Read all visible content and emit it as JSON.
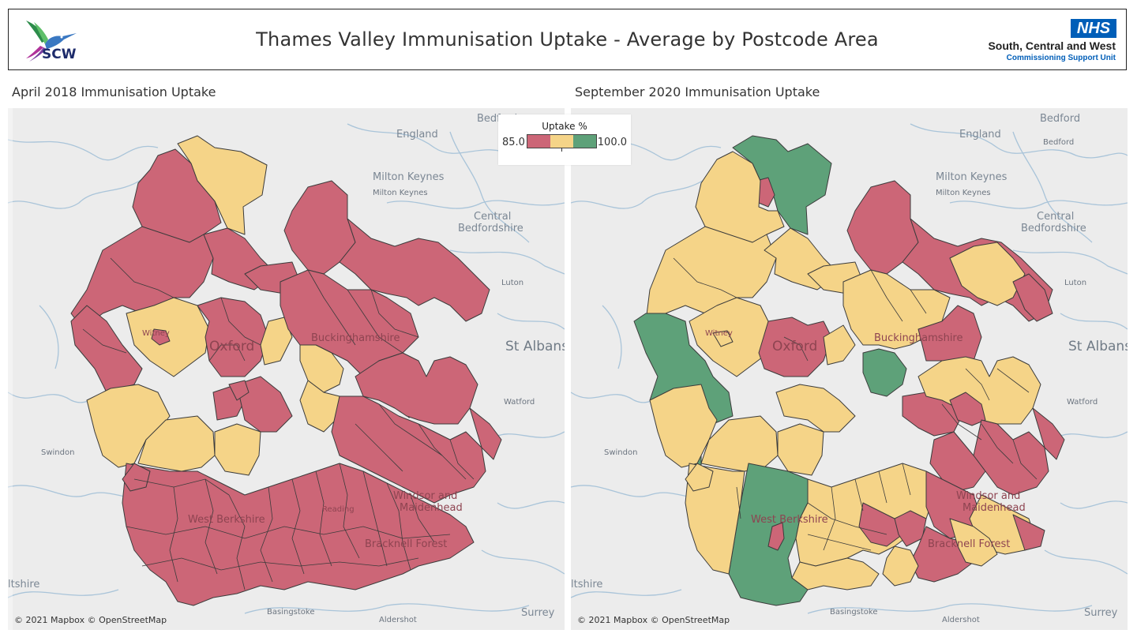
{
  "header": {
    "title": "Thames Valley Immunisation Uptake - Average by Postcode Area",
    "logo_left_text": "SCW",
    "nhs_badge": "NHS",
    "org_name": "South, Central and West",
    "org_sub": "Commissioning Support Unit"
  },
  "panels": [
    {
      "title": "April 2018 Immunisation Uptake",
      "attribution": "© 2021 Mapbox © OpenStreetMap",
      "dominant_category": "low"
    },
    {
      "title": "September 2020 Immunisation Uptake",
      "attribution": "© 2021 Mapbox © OpenStreetMap",
      "dominant_category": "mixed"
    }
  ],
  "legend": {
    "title": "Uptake %",
    "min_label": "85.0",
    "max_label": "100.0",
    "colors": {
      "low": "#cc6677",
      "mid": "#f5d488",
      "high": "#5ea179"
    }
  },
  "places": {
    "bedford": "Bedford",
    "england": "England",
    "milton_keynes": "Milton Keynes",
    "central_bedfordshire": "Central\nBedfordshire",
    "central_bedfordshire_line1": "Central",
    "central_bedfordshire_line2": "Bedfordshire",
    "luton": "Luton",
    "st_albans": "St Albans",
    "watford": "Watford",
    "swindon": "Swindon",
    "wiltshire": "ltshire",
    "basingstoke": "Basingstoke",
    "aldershot": "Aldershot",
    "surrey": "Surrey",
    "oxford": "Oxford",
    "buckinghamshire": "Buckinghamshire",
    "witney": "Witney",
    "west_berkshire": "West Berkshire",
    "windsor_maidenhead_1": "Windsor and",
    "windsor_maidenhead_2": "Maidenhead",
    "bracknell_forest": "Bracknell Forest",
    "reading": "Reading"
  }
}
